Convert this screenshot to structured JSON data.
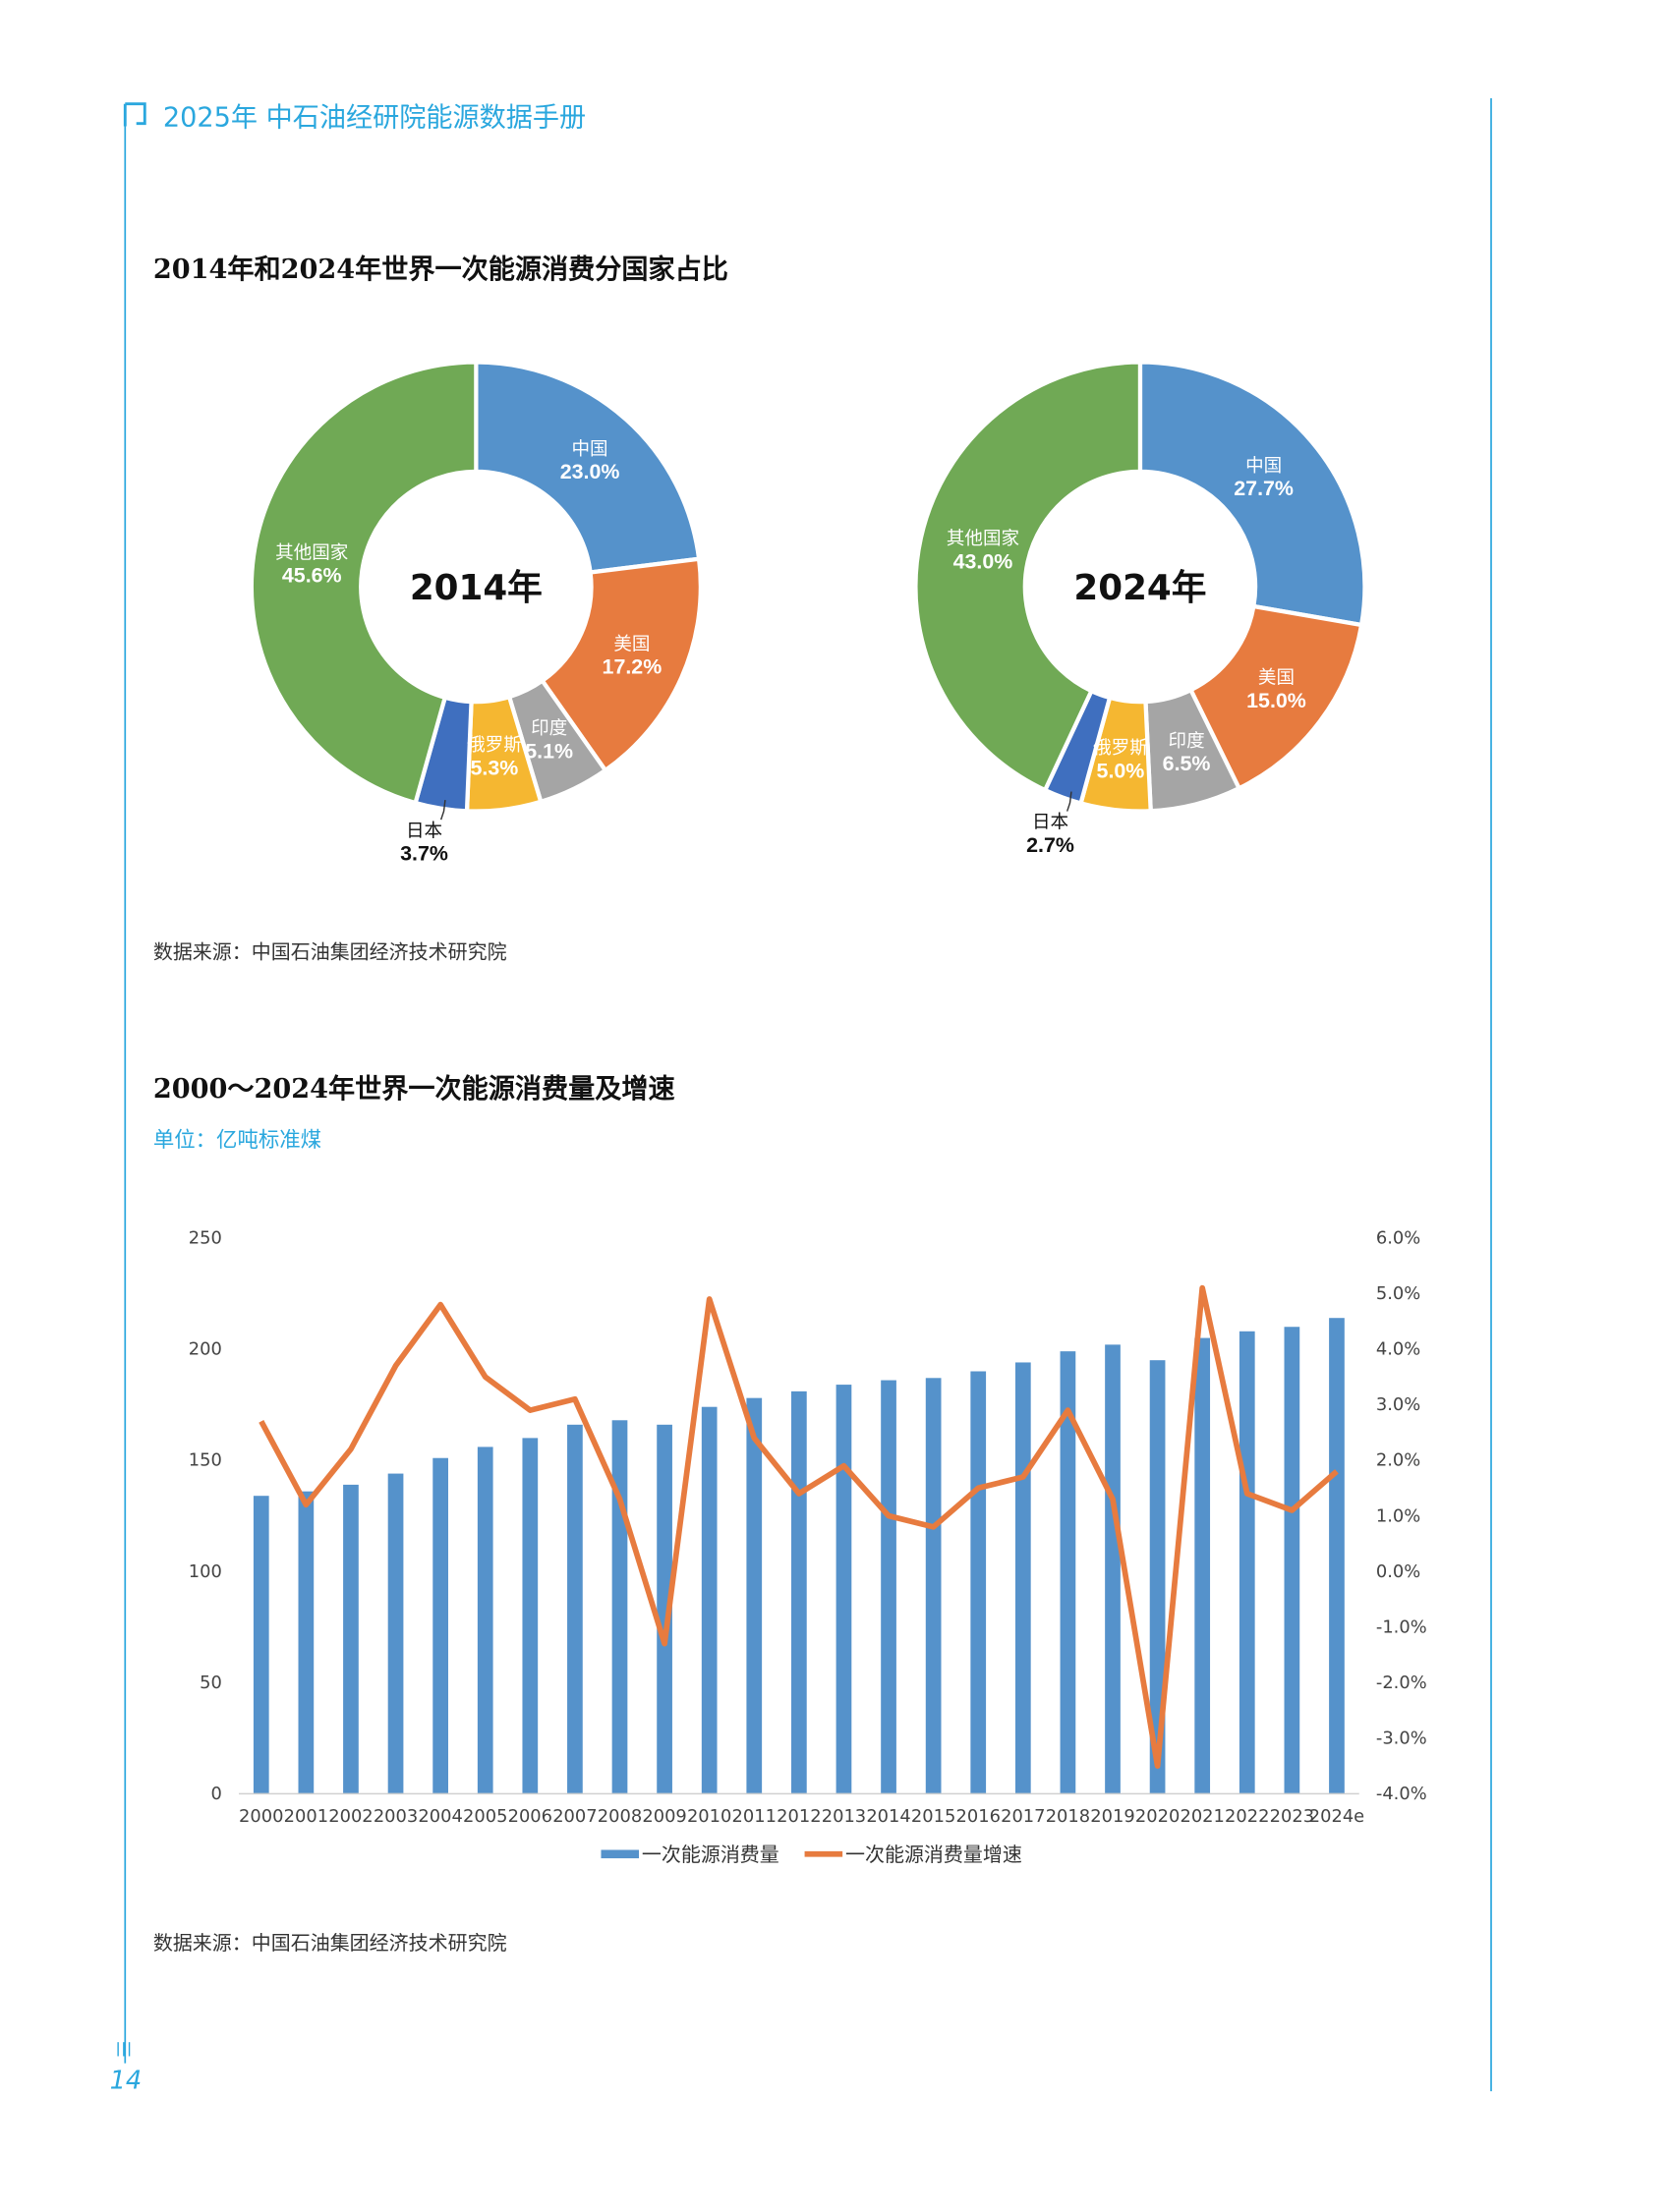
{
  "header": {
    "title": "2025年 中石油经研院能源数据手册",
    "page_number": "14"
  },
  "colors": {
    "accent": "#2AA7DE",
    "china": "#5592CB",
    "usa": "#E77B3F",
    "india": "#A5A5A5",
    "russia": "#F5B731",
    "japan": "#3F6FBF",
    "others": "#70A955",
    "bar": "#5592CB",
    "line": "#E77B3F"
  },
  "section1": {
    "title": "2014年和2024年世界一次能源消费分国家占比",
    "source": "数据来源：中国石油集团经济技术研究院"
  },
  "section2": {
    "title": "2000～2024年世界一次能源消费量及增速",
    "unit": "单位：亿吨标准煤",
    "source": "数据来源：中国石油集团经济技术研究院"
  },
  "chart_data": [
    {
      "type": "pie",
      "center_label": "2014年",
      "categories": [
        "中国",
        "美国",
        "印度",
        "俄罗斯",
        "日本",
        "其他国家"
      ],
      "values": [
        23.0,
        17.2,
        5.1,
        5.3,
        3.7,
        45.6
      ],
      "value_labels": [
        "23.0%",
        "17.2%",
        "5.1%",
        "5.3%",
        "3.7%",
        "45.6%"
      ]
    },
    {
      "type": "pie",
      "center_label": "2024年",
      "categories": [
        "中国",
        "美国",
        "印度",
        "俄罗斯",
        "日本",
        "其他国家"
      ],
      "values": [
        27.7,
        15.0,
        6.5,
        5.0,
        2.7,
        43.0
      ],
      "value_labels": [
        "27.7%",
        "15.0%",
        "6.5%",
        "5.0%",
        "2.7%",
        "43.0%"
      ]
    },
    {
      "type": "bar+line",
      "categories": [
        "2000",
        "2001",
        "2002",
        "2003",
        "2004",
        "2005",
        "2006",
        "2007",
        "2008",
        "2009",
        "2010",
        "2011",
        "2012",
        "2013",
        "2014",
        "2015",
        "2016",
        "2017",
        "2018",
        "2019",
        "2020",
        "2021",
        "2022",
        "2023",
        "2024e"
      ],
      "series": [
        {
          "name": "一次能源消费量",
          "type": "bar",
          "axis": "left",
          "values": [
            134,
            136,
            139,
            144,
            151,
            156,
            160,
            166,
            168,
            166,
            174,
            178,
            181,
            184,
            186,
            187,
            190,
            194,
            199,
            202,
            195,
            205,
            208,
            210,
            214
          ]
        },
        {
          "name": "一次能源消费量增速",
          "type": "line",
          "axis": "right",
          "values": [
            2.7,
            1.2,
            2.2,
            3.7,
            4.8,
            3.5,
            2.9,
            3.1,
            1.3,
            -1.3,
            4.9,
            2.4,
            1.4,
            1.9,
            1.0,
            0.8,
            1.5,
            1.7,
            2.9,
            1.3,
            -3.5,
            5.1,
            1.4,
            1.1,
            1.8
          ]
        }
      ],
      "y_left": {
        "range": [
          0,
          250
        ],
        "ticks": [
          "0",
          "50",
          "100",
          "150",
          "200",
          "250"
        ]
      },
      "y_right": {
        "range": [
          -4.0,
          6.0
        ],
        "ticks": [
          "-4.0%",
          "-3.0%",
          "-2.0%",
          "-1.0%",
          "0.0%",
          "1.0%",
          "2.0%",
          "3.0%",
          "4.0%",
          "5.0%",
          "6.0%"
        ]
      },
      "legend": "bottom",
      "grid": false
    }
  ]
}
